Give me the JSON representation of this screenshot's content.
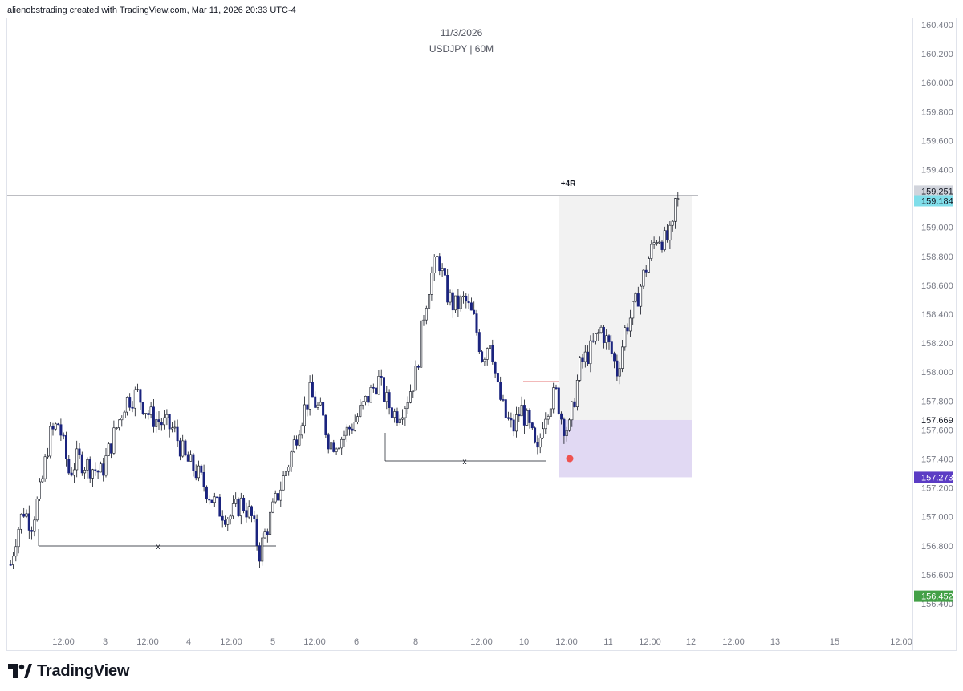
{
  "header": {
    "text": "alienobstrading created with TradingView.com, Mar 11, 2026 20:33 UTC-4"
  },
  "brand": {
    "name": "TradingView",
    "logo_icon": "tradingview-logo-icon"
  },
  "chart_data": {
    "type": "candlestick",
    "title": "11/3/2026",
    "subtitle": "USDJPY | 60M",
    "symbol": "USDJPY",
    "interval": "60M",
    "ylim": [
      156.3,
      160.5
    ],
    "y_ticks": [
      "160.400",
      "160.200",
      "160.000",
      "159.800",
      "159.600",
      "159.400",
      "159.000",
      "158.800",
      "158.600",
      "158.400",
      "158.200",
      "158.000",
      "157.800",
      "157.600",
      "157.400",
      "157.200",
      "157.000",
      "156.800",
      "156.600",
      "156.400"
    ],
    "x_ticks": [
      "12:00",
      "3",
      "12:00",
      "4",
      "12:00",
      "5",
      "12:00",
      "6",
      "8",
      "12:00",
      "10",
      "12:00",
      "11",
      "12:00",
      "12",
      "12:00",
      "13",
      "15",
      "12:00"
    ],
    "price_labels": [
      {
        "value": "159.251",
        "color": "#d1d4dc",
        "text_color": "#131722"
      },
      {
        "value": "159.184",
        "color": "#80deea",
        "text_color": "#131722"
      },
      {
        "value": "157.669",
        "color": "#ffffff",
        "text_color": "#131722"
      },
      {
        "value": "157.273",
        "color": "#5b3cc4",
        "text_color": "#ffffff"
      },
      {
        "value": "156.452",
        "color": "#43a047",
        "text_color": "#ffffff"
      }
    ],
    "annotations": {
      "target_label": "+4R",
      "target_line_price": 159.22,
      "liquidity_marks": [
        "x",
        "x"
      ],
      "entry_zone": {
        "top": 157.669,
        "bottom": 157.273
      },
      "reward_zone": {
        "top": 159.22,
        "bottom": 157.669
      }
    },
    "colors": {
      "bull": "#ffffff",
      "bear": "#1a237e",
      "wick": "#131722",
      "reward_zone": "#f2f2f2",
      "risk_zone": "#e1d9f3"
    }
  }
}
